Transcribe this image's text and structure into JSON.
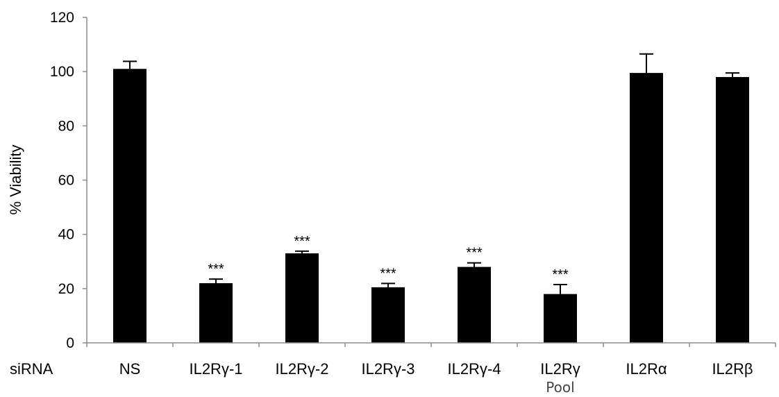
{
  "chart_data": {
    "type": "bar",
    "ylabel": "% Viability",
    "xlabel": "siRNA",
    "ylim": [
      0,
      120
    ],
    "yticks": [
      0,
      20,
      40,
      60,
      80,
      100,
      120
    ],
    "grid": false,
    "bar_color": "#000000",
    "categories": [
      {
        "label": "NS",
        "sublabel": ""
      },
      {
        "label": "IL2Rγ-1",
        "sublabel": ""
      },
      {
        "label": "IL2Rγ-2",
        "sublabel": ""
      },
      {
        "label": "IL2Rγ-3",
        "sublabel": ""
      },
      {
        "label": "IL2Rγ-4",
        "sublabel": ""
      },
      {
        "label": "IL2Rγ",
        "sublabel": "Pool"
      },
      {
        "label": "IL2Rα",
        "sublabel": ""
      },
      {
        "label": "IL2Rβ",
        "sublabel": ""
      }
    ],
    "values": [
      101,
      22,
      33,
      20.5,
      28,
      18,
      99.5,
      98
    ],
    "errors": [
      2.8,
      1.5,
      0.8,
      1.4,
      1.5,
      3.5,
      7,
      1.5
    ],
    "significance": [
      "",
      "***",
      "***",
      "***",
      "***",
      "***",
      "",
      ""
    ]
  }
}
